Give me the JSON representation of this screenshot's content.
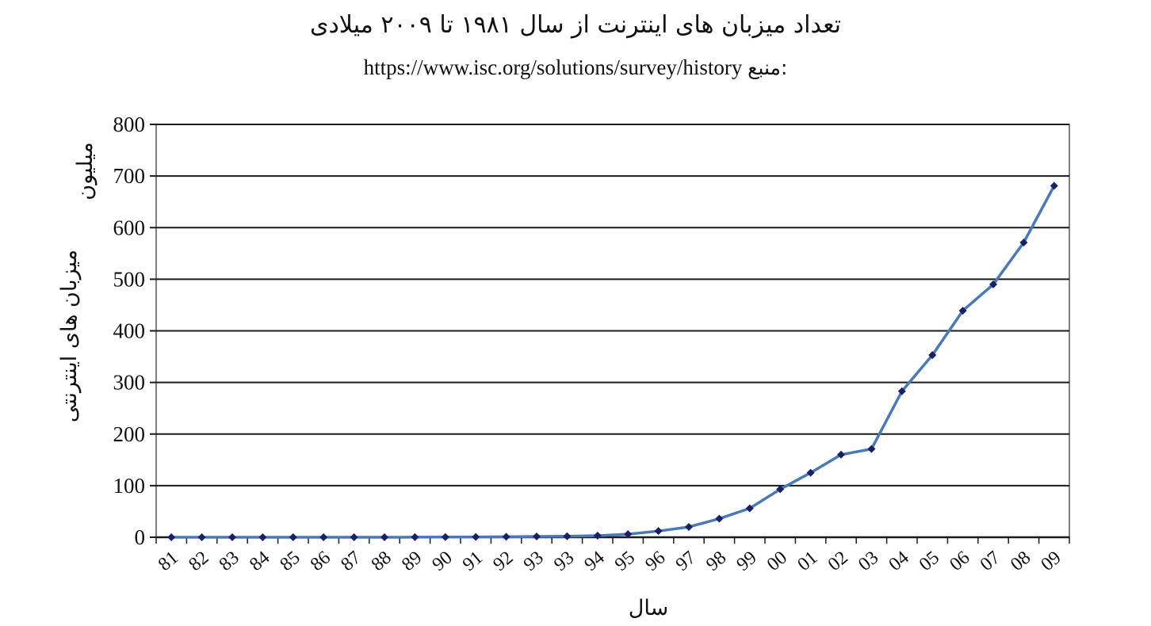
{
  "chart_data": {
    "type": "line",
    "title": "تعداد میزبان های اینترنت از سال ۱۹۸۱ تا ۲۰۰۹ میلادی",
    "source_label": "منبع:",
    "source_url": "https://www.isc.org/solutions/survey/history",
    "xlabel": "سال",
    "ylabel": "میزبان های اینترنتی",
    "yunit": "میلیون",
    "ylim": [
      0,
      800
    ],
    "yticks": [
      0,
      100,
      200,
      300,
      400,
      500,
      600,
      700,
      800
    ],
    "grid": true,
    "categories": [
      "81",
      "82",
      "83",
      "84",
      "85",
      "86",
      "87",
      "88",
      "89",
      "90",
      "91",
      "92",
      "93",
      "93",
      "94",
      "95",
      "96",
      "97",
      "98",
      "99",
      "00",
      "01",
      "02",
      "03",
      "04",
      "05",
      "06",
      "07",
      "08",
      "09"
    ],
    "series": [
      {
        "values": [
          0,
          0,
          0,
          0,
          0,
          0,
          0,
          0,
          0.1,
          0.3,
          0.5,
          1,
          1.5,
          2,
          3,
          6,
          12,
          20,
          36,
          56,
          93,
          125,
          160,
          171,
          283,
          353,
          439,
          490,
          571,
          681
        ],
        "color": "#4a7ab5",
        "marker_color": "#1a1f66"
      }
    ]
  }
}
